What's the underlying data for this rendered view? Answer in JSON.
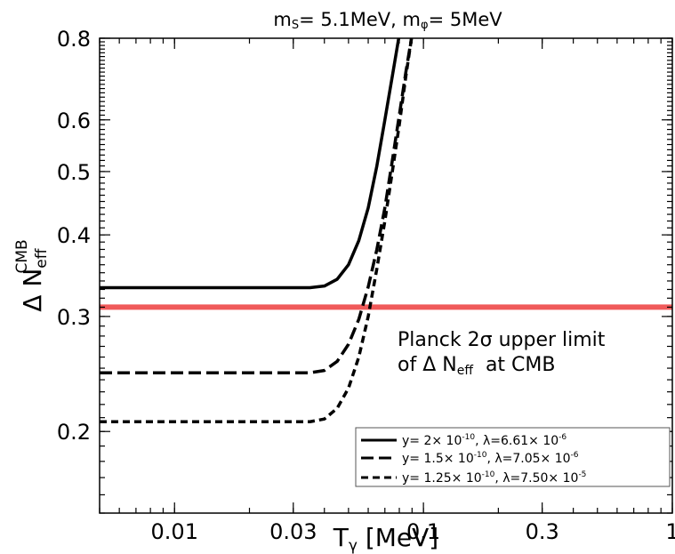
{
  "chart_data": {
    "type": "line",
    "title": {
      "m_s": "m",
      "m_s_sub": "S",
      "m_s_val": "= 5.1MeV, ",
      "m_phi": "m",
      "m_phi_sub": "φ",
      "m_phi_val": "= 5MeV"
    },
    "xlabel": {
      "base": "T",
      "sub": "γ",
      "rest": " [MeV]"
    },
    "ylabel": {
      "base": "Δ N",
      "sub": "eff",
      "sup": "CMB"
    },
    "x_scale": "log",
    "y_scale": "log",
    "xlim": [
      0.005,
      1
    ],
    "ylim": [
      0.15,
      0.8
    ],
    "x_ticks": [
      {
        "value": 0.01,
        "label": "0.01"
      },
      {
        "value": 0.03,
        "label": "0.03"
      },
      {
        "value": 0.1,
        "label": "0.1"
      },
      {
        "value": 0.3,
        "label": "0.3"
      },
      {
        "value": 1,
        "label": "1"
      }
    ],
    "y_ticks": [
      {
        "value": 0.2,
        "label": "0.2"
      },
      {
        "value": 0.3,
        "label": "0.3"
      },
      {
        "value": 0.4,
        "label": "0.4"
      },
      {
        "value": 0.5,
        "label": "0.5"
      },
      {
        "value": 0.6,
        "label": "0.6"
      },
      {
        "value": 0.8,
        "label": "0.8"
      }
    ],
    "grid": false,
    "legend_position": "bottom-right",
    "reference_line": {
      "y": 0.31,
      "color": "#f05a5a",
      "label_line1": "Planck 2σ upper limit",
      "label_line2_pre": "of Δ N",
      "label_line2_sub": "eff",
      "label_line2_post": "  at CMB"
    },
    "series": [
      {
        "legend": {
          "p1": "y= 2× 10",
          "s1": "-10",
          "p2": ", λ=6.61× 10",
          "s2": "-6"
        },
        "style": "solid",
        "color": "#000000",
        "points": [
          [
            0.005,
            0.332
          ],
          [
            0.02,
            0.332
          ],
          [
            0.035,
            0.332
          ],
          [
            0.04,
            0.334
          ],
          [
            0.045,
            0.342
          ],
          [
            0.05,
            0.36
          ],
          [
            0.055,
            0.392
          ],
          [
            0.06,
            0.44
          ],
          [
            0.065,
            0.51
          ],
          [
            0.07,
            0.6
          ],
          [
            0.075,
            0.7
          ],
          [
            0.08,
            0.81
          ]
        ]
      },
      {
        "legend": {
          "p1": "y= 1.5× 10",
          "s1": "-10",
          "p2": ", λ=7.05× 10",
          "s2": "-6"
        },
        "style": "long-dash",
        "color": "#000000",
        "points": [
          [
            0.005,
            0.246
          ],
          [
            0.02,
            0.246
          ],
          [
            0.035,
            0.246
          ],
          [
            0.04,
            0.248
          ],
          [
            0.045,
            0.256
          ],
          [
            0.05,
            0.272
          ],
          [
            0.055,
            0.297
          ],
          [
            0.06,
            0.333
          ],
          [
            0.065,
            0.38
          ],
          [
            0.07,
            0.44
          ],
          [
            0.075,
            0.52
          ],
          [
            0.08,
            0.61
          ],
          [
            0.085,
            0.71
          ],
          [
            0.09,
            0.81
          ]
        ]
      },
      {
        "legend": {
          "p1": "y= 1.25× 10",
          "s1": "-10",
          "p2": ", λ=7.50× 10",
          "s2": "-5"
        },
        "style": "short-dash",
        "color": "#000000",
        "points": [
          [
            0.005,
            0.207
          ],
          [
            0.02,
            0.207
          ],
          [
            0.035,
            0.207
          ],
          [
            0.04,
            0.209
          ],
          [
            0.045,
            0.217
          ],
          [
            0.05,
            0.233
          ],
          [
            0.055,
            0.26
          ],
          [
            0.06,
            0.3
          ],
          [
            0.065,
            0.355
          ],
          [
            0.07,
            0.42
          ],
          [
            0.075,
            0.5
          ],
          [
            0.08,
            0.59
          ],
          [
            0.085,
            0.7
          ],
          [
            0.09,
            0.81
          ]
        ]
      }
    ]
  }
}
